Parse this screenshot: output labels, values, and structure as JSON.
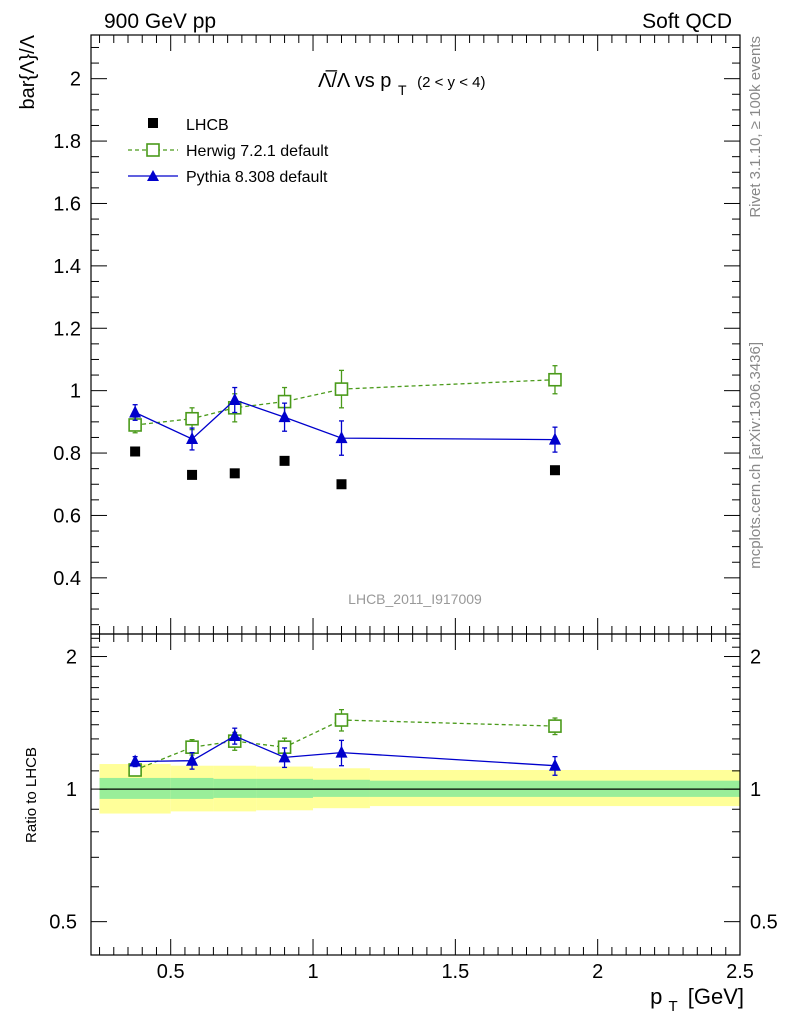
{
  "header": {
    "left": "900 GeV pp",
    "right": "Soft QCD"
  },
  "side_texts": {
    "rivet": "Rivet 3.1.10, ≥ 100k events",
    "mcplots": "mcplots.cern.ch [arXiv:1306.3436]"
  },
  "watermark": "LHCB_2011_I917009",
  "colors": {
    "data": "#000000",
    "herwig": "#4a9a1a",
    "pythia": "#0000cc",
    "band_inner": "#99ee99",
    "band_outer": "#ffff99"
  },
  "chart_data": [
    {
      "type": "scatter",
      "title_main": "Λ̅/Λ vs p",
      "title_sub": "T",
      "title_range": "(2 < y < 4)",
      "ylabel": "bar{Λ}/Λ",
      "xlim": [
        0.22,
        2.5
      ],
      "ylim": [
        0.22,
        2.14
      ],
      "yticks": [
        0.4,
        0.6,
        0.8,
        1,
        1.2,
        1.4,
        1.6,
        1.8,
        2
      ],
      "ytick_labels": [
        "0.4",
        "0.6",
        "0.8",
        "1",
        "1.2",
        "1.4",
        "1.6",
        "1.8",
        "2"
      ],
      "legend_position": "top-left",
      "series": [
        {
          "name": "LHCB",
          "style": "data",
          "x": [
            0.375,
            0.575,
            0.725,
            0.9,
            1.1,
            1.85
          ],
          "y": [
            0.805,
            0.73,
            0.735,
            0.775,
            0.7,
            0.745
          ]
        },
        {
          "name": "Herwig 7.2.1 default",
          "style": "herwig",
          "x": [
            0.375,
            0.575,
            0.725,
            0.9,
            1.1,
            1.85
          ],
          "y": [
            0.89,
            0.91,
            0.945,
            0.965,
            1.005,
            1.035
          ],
          "err": [
            0.025,
            0.035,
            0.045,
            0.045,
            0.06,
            0.045
          ]
        },
        {
          "name": "Pythia 8.308 default",
          "style": "pythia",
          "x": [
            0.375,
            0.575,
            0.725,
            0.9,
            1.1,
            1.85
          ],
          "y": [
            0.93,
            0.845,
            0.97,
            0.915,
            0.848,
            0.843
          ],
          "err": [
            0.025,
            0.035,
            0.04,
            0.045,
            0.055,
            0.04
          ]
        }
      ]
    },
    {
      "type": "scatter",
      "ylabel": "Ratio to LHCB",
      "xlabel_main": "p",
      "xlabel_sub": "T",
      "xlabel_unit": "[GeV]",
      "xlim": [
        0.22,
        2.5
      ],
      "ylim": [
        0.42,
        2.25
      ],
      "yscale": "log",
      "yticks": [
        0.5,
        1,
        2
      ],
      "ytick_labels": [
        "0.5",
        "1",
        "2"
      ],
      "xticks": [
        0.5,
        1,
        1.5,
        2,
        2.5
      ],
      "xtick_labels": [
        "0.5",
        "1",
        "1.5",
        "2",
        "2.5"
      ],
      "bands": [
        {
          "x0": 0.25,
          "x1": 0.5,
          "outer": [
            0.88,
            1.14
          ],
          "inner": [
            0.95,
            1.06
          ]
        },
        {
          "x0": 0.5,
          "x1": 0.65,
          "outer": [
            0.89,
            1.13
          ],
          "inner": [
            0.95,
            1.06
          ]
        },
        {
          "x0": 0.65,
          "x1": 0.8,
          "outer": [
            0.89,
            1.13
          ],
          "inner": [
            0.955,
            1.055
          ]
        },
        {
          "x0": 0.8,
          "x1": 1.0,
          "outer": [
            0.895,
            1.125
          ],
          "inner": [
            0.955,
            1.055
          ]
        },
        {
          "x0": 1.0,
          "x1": 1.2,
          "outer": [
            0.905,
            1.115
          ],
          "inner": [
            0.96,
            1.05
          ]
        },
        {
          "x0": 1.2,
          "x1": 2.5,
          "outer": [
            0.915,
            1.105
          ],
          "inner": [
            0.96,
            1.045
          ]
        }
      ],
      "series": [
        {
          "name": "Herwig 7.2.1 default",
          "style": "herwig",
          "x": [
            0.375,
            0.575,
            0.725,
            0.9,
            1.1,
            1.85
          ],
          "y": [
            1.105,
            1.245,
            1.285,
            1.245,
            1.435,
            1.39
          ],
          "err": [
            0.03,
            0.05,
            0.06,
            0.06,
            0.08,
            0.06
          ]
        },
        {
          "name": "Pythia 8.308 default",
          "style": "pythia",
          "x": [
            0.375,
            0.575,
            0.725,
            0.9,
            1.1,
            1.85
          ],
          "y": [
            1.155,
            1.16,
            1.32,
            1.18,
            1.21,
            1.13
          ],
          "err": [
            0.03,
            0.05,
            0.055,
            0.06,
            0.08,
            0.055
          ]
        }
      ]
    }
  ]
}
